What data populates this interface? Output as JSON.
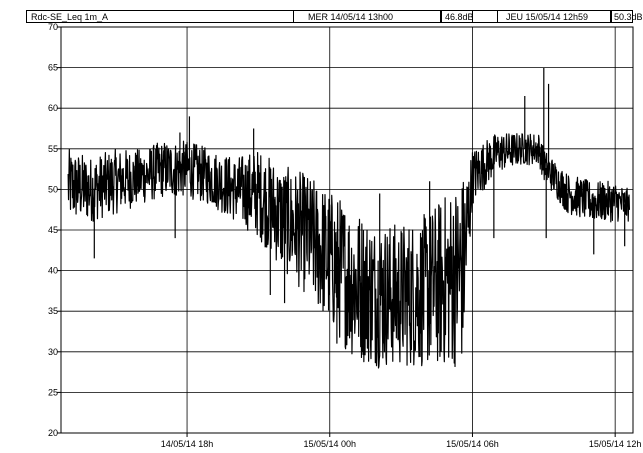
{
  "header": {
    "series_label": "Rdc-SE_Leq 1m_A",
    "cursor1_time": "MER 14/05/14 13h00",
    "cursor1_value": "46.8dB",
    "cursor2_time": "JEU 15/05/14 12h59",
    "cursor2_value": "50.3dB"
  },
  "chart_data": {
    "type": "line",
    "title": "",
    "xlabel": "",
    "ylabel": "",
    "ylim": [
      20,
      70
    ],
    "yticks": [
      70,
      65,
      60,
      55,
      50,
      45,
      40,
      35,
      30,
      25,
      20
    ],
    "xticks": [
      {
        "label": "14/05/14 18h",
        "hour": 18
      },
      {
        "label": "15/05/14 00h",
        "hour": 24
      },
      {
        "label": "15/05/14 06h",
        "hour": 30
      },
      {
        "label": "15/05/14 12h",
        "hour": 36
      }
    ],
    "grid": true,
    "series": [
      {
        "color": "#000000",
        "envelope_points": [
          {
            "hour": 13.0,
            "low": 46,
            "high": 55
          },
          {
            "hour": 14.0,
            "low": 46,
            "high": 54
          },
          {
            "hour": 15.0,
            "low": 47,
            "high": 55
          },
          {
            "hour": 16.0,
            "low": 48,
            "high": 55
          },
          {
            "hour": 17.0,
            "low": 49,
            "high": 56
          },
          {
            "hour": 18.0,
            "low": 49,
            "high": 56
          },
          {
            "hour": 19.0,
            "low": 48,
            "high": 55
          },
          {
            "hour": 20.0,
            "low": 46,
            "high": 54
          },
          {
            "hour": 21.0,
            "low": 44,
            "high": 55
          },
          {
            "hour": 22.0,
            "low": 40,
            "high": 53
          },
          {
            "hour": 23.0,
            "low": 37,
            "high": 52
          },
          {
            "hour": 24.0,
            "low": 33,
            "high": 50
          },
          {
            "hour": 25.0,
            "low": 29,
            "high": 48
          },
          {
            "hour": 26.0,
            "low": 28,
            "high": 46
          },
          {
            "hour": 27.0,
            "low": 28,
            "high": 46
          },
          {
            "hour": 28.0,
            "low": 28,
            "high": 47
          },
          {
            "hour": 29.0,
            "low": 28,
            "high": 50
          },
          {
            "hour": 29.6,
            "low": 28,
            "high": 52
          },
          {
            "hour": 30.0,
            "low": 48,
            "high": 55
          },
          {
            "hour": 31.0,
            "low": 52,
            "high": 57
          },
          {
            "hour": 32.0,
            "low": 53,
            "high": 57
          },
          {
            "hour": 32.8,
            "low": 53,
            "high": 57
          },
          {
            "hour": 33.0,
            "low": 51,
            "high": 55
          },
          {
            "hour": 34.0,
            "low": 47,
            "high": 52
          },
          {
            "hour": 35.0,
            "low": 46,
            "high": 51
          },
          {
            "hour": 36.0,
            "low": 46,
            "high": 51
          },
          {
            "hour": 36.6,
            "low": 46,
            "high": 50
          }
        ],
        "spikes": [
          {
            "hour": 17.7,
            "value": 57
          },
          {
            "hour": 18.1,
            "value": 59
          },
          {
            "hour": 20.8,
            "value": 57.5
          },
          {
            "hour": 14.1,
            "value": 41.5
          },
          {
            "hour": 17.5,
            "value": 44
          },
          {
            "hour": 22.1,
            "value": 36
          },
          {
            "hour": 21.5,
            "value": 37
          },
          {
            "hour": 31.2,
            "value": 54
          },
          {
            "hour": 32.2,
            "value": 61.5
          },
          {
            "hour": 33.0,
            "value": 65
          },
          {
            "hour": 33.2,
            "value": 63
          },
          {
            "hour": 33.1,
            "value": 44
          },
          {
            "hour": 30.9,
            "value": 44
          },
          {
            "hour": 35.1,
            "value": 42
          },
          {
            "hour": 36.4,
            "value": 43
          },
          {
            "hour": 26.1,
            "value": 49.5
          },
          {
            "hour": 28.2,
            "value": 51
          },
          {
            "hour": 24.3,
            "value": 31
          }
        ]
      }
    ]
  }
}
